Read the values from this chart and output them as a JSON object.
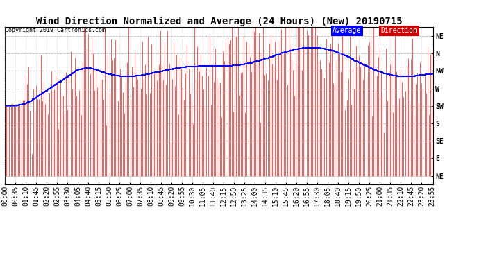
{
  "title": "Wind Direction Normalized and Average (24 Hours) (New) 20190715",
  "copyright": "Copyright 2019 Cartronics.com",
  "legend_avg_label": "Average",
  "legend_dir_label": "Direction",
  "legend_avg_bg": "#0000FF",
  "legend_dir_bg": "#CC0000",
  "legend_text_color": "#FFFFFF",
  "background_color": "#FFFFFF",
  "plot_bg_color": "#FFFFFF",
  "direction_color": "#FF0000",
  "average_color": "#0000FF",
  "grid_color": "#AAAAAA",
  "ytick_display_values": [
    360,
    315,
    270,
    225,
    180,
    135,
    90,
    45,
    0
  ],
  "ytick_display_labels": [
    "NE",
    "N",
    "NW",
    "W",
    "SW",
    "S",
    "SE",
    "E",
    "NE"
  ],
  "ymin": -22.5,
  "ymax": 382.5,
  "title_fontsize": 10,
  "tick_fontsize": 7
}
